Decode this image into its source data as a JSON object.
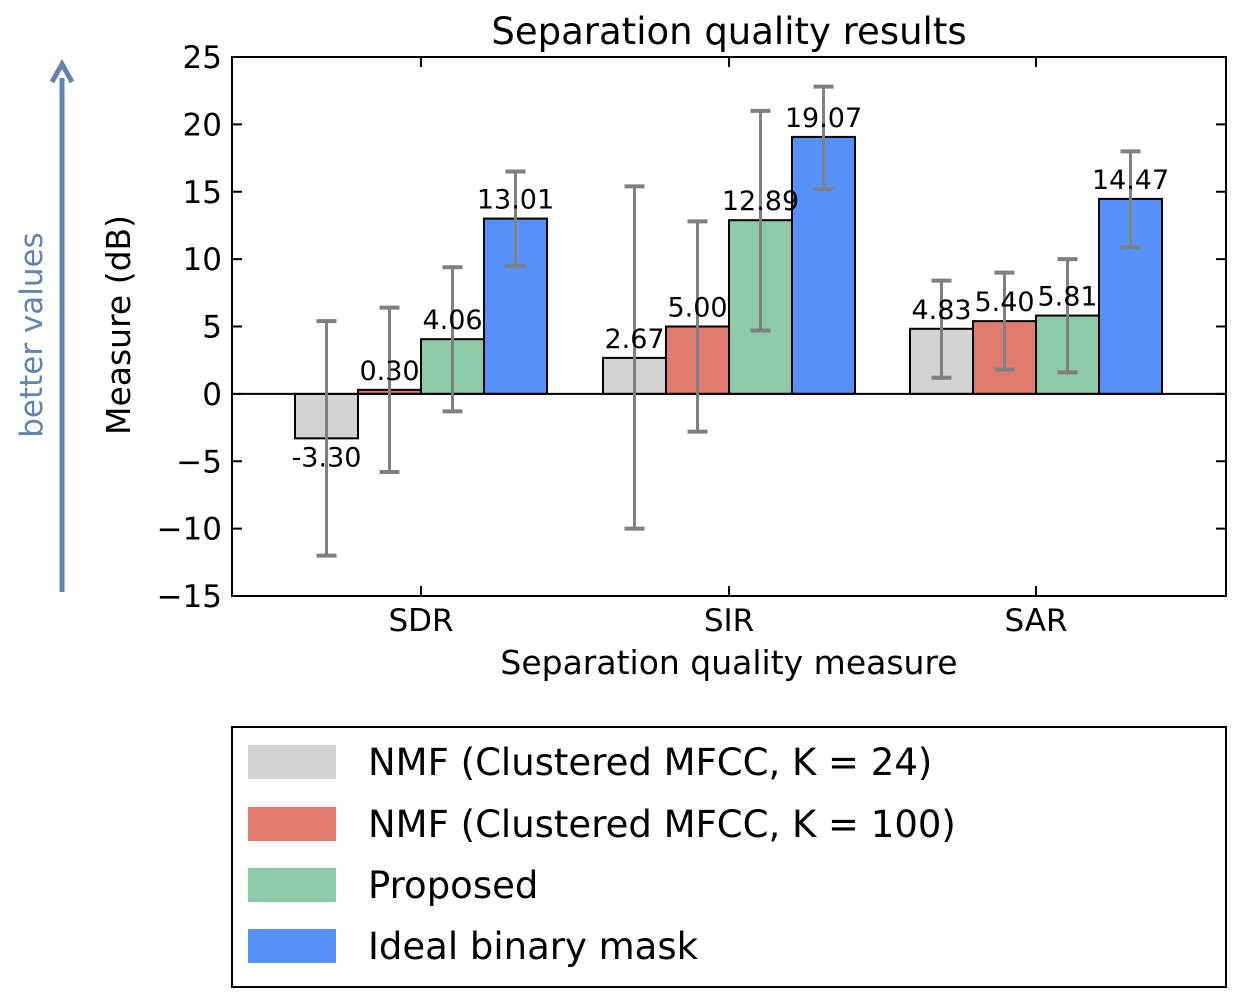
{
  "chart_data": {
    "type": "bar",
    "title": "Separation quality results",
    "xlabel": "Separation quality measure",
    "ylabel": "Measure (dB)",
    "side_annotation": "better values",
    "categories": [
      "SDR",
      "SIR",
      "SAR"
    ],
    "ylim": [
      -15,
      25
    ],
    "yticks": [
      25,
      20,
      15,
      10,
      5,
      0,
      -5,
      -10,
      -15
    ],
    "ytick_labels": [
      "25",
      "20",
      "15",
      "10",
      "5",
      "0",
      "−5",
      "−10",
      "−15"
    ],
    "grid": false,
    "legend_position": "below",
    "series": [
      {
        "name": "NMF (Clustered MFCC, K = 24)",
        "color": "#d3d3d3",
        "values": [
          -3.3,
          2.67,
          4.83
        ],
        "value_labels": [
          "-3.30",
          "2.67",
          "4.83"
        ],
        "error_low": [
          -12.0,
          -10.0,
          1.2
        ],
        "error_high": [
          5.4,
          15.4,
          8.4
        ]
      },
      {
        "name": "NMF (Clustered MFCC, K = 100)",
        "color": "#e07b6e",
        "values": [
          0.3,
          5.0,
          5.4
        ],
        "value_labels": [
          "0.30",
          "5.00",
          "5.40"
        ],
        "error_low": [
          -5.8,
          -2.8,
          1.8
        ],
        "error_high": [
          6.4,
          12.8,
          9.0
        ]
      },
      {
        "name": "Proposed",
        "color": "#8ccba6",
        "values": [
          4.06,
          12.89,
          5.81
        ],
        "value_labels": [
          "4.06",
          "12.89",
          "5.81"
        ],
        "error_low": [
          -1.3,
          4.7,
          1.6
        ],
        "error_high": [
          9.4,
          21.0,
          10.0
        ]
      },
      {
        "name": "Ideal binary mask",
        "color": "#5591f8",
        "values": [
          13.01,
          19.07,
          14.47
        ],
        "value_labels": [
          "13.01",
          "19.07",
          "14.47"
        ],
        "error_low": [
          9.5,
          15.2,
          10.9
        ],
        "error_high": [
          16.5,
          22.8,
          18.0
        ]
      }
    ],
    "annotation_color": "#6383b0",
    "errorbar_color": "#808080"
  }
}
